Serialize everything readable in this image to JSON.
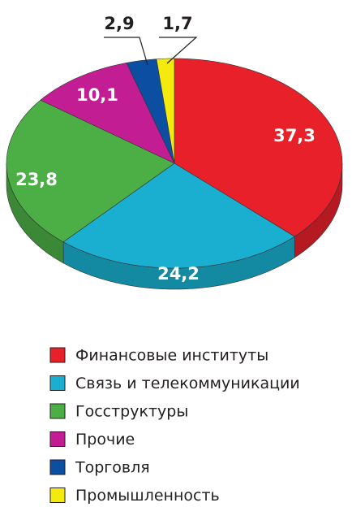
{
  "chart_data": {
    "type": "pie",
    "categories": [
      "Финансовые институты",
      "Связь и телекоммуникации",
      "Госструктуры",
      "Прочие",
      "Торговля",
      "Промышленность"
    ],
    "values": [
      37.3,
      24.2,
      23.8,
      10.1,
      2.9,
      1.7
    ],
    "value_labels": [
      "37,3",
      "24,2",
      "23,8",
      "10,1",
      "2,9",
      "1,7"
    ],
    "colors": [
      "#e8202a",
      "#1aafd0",
      "#4caf45",
      "#c21d93",
      "#0b4ea2",
      "#f4ea0e"
    ]
  }
}
